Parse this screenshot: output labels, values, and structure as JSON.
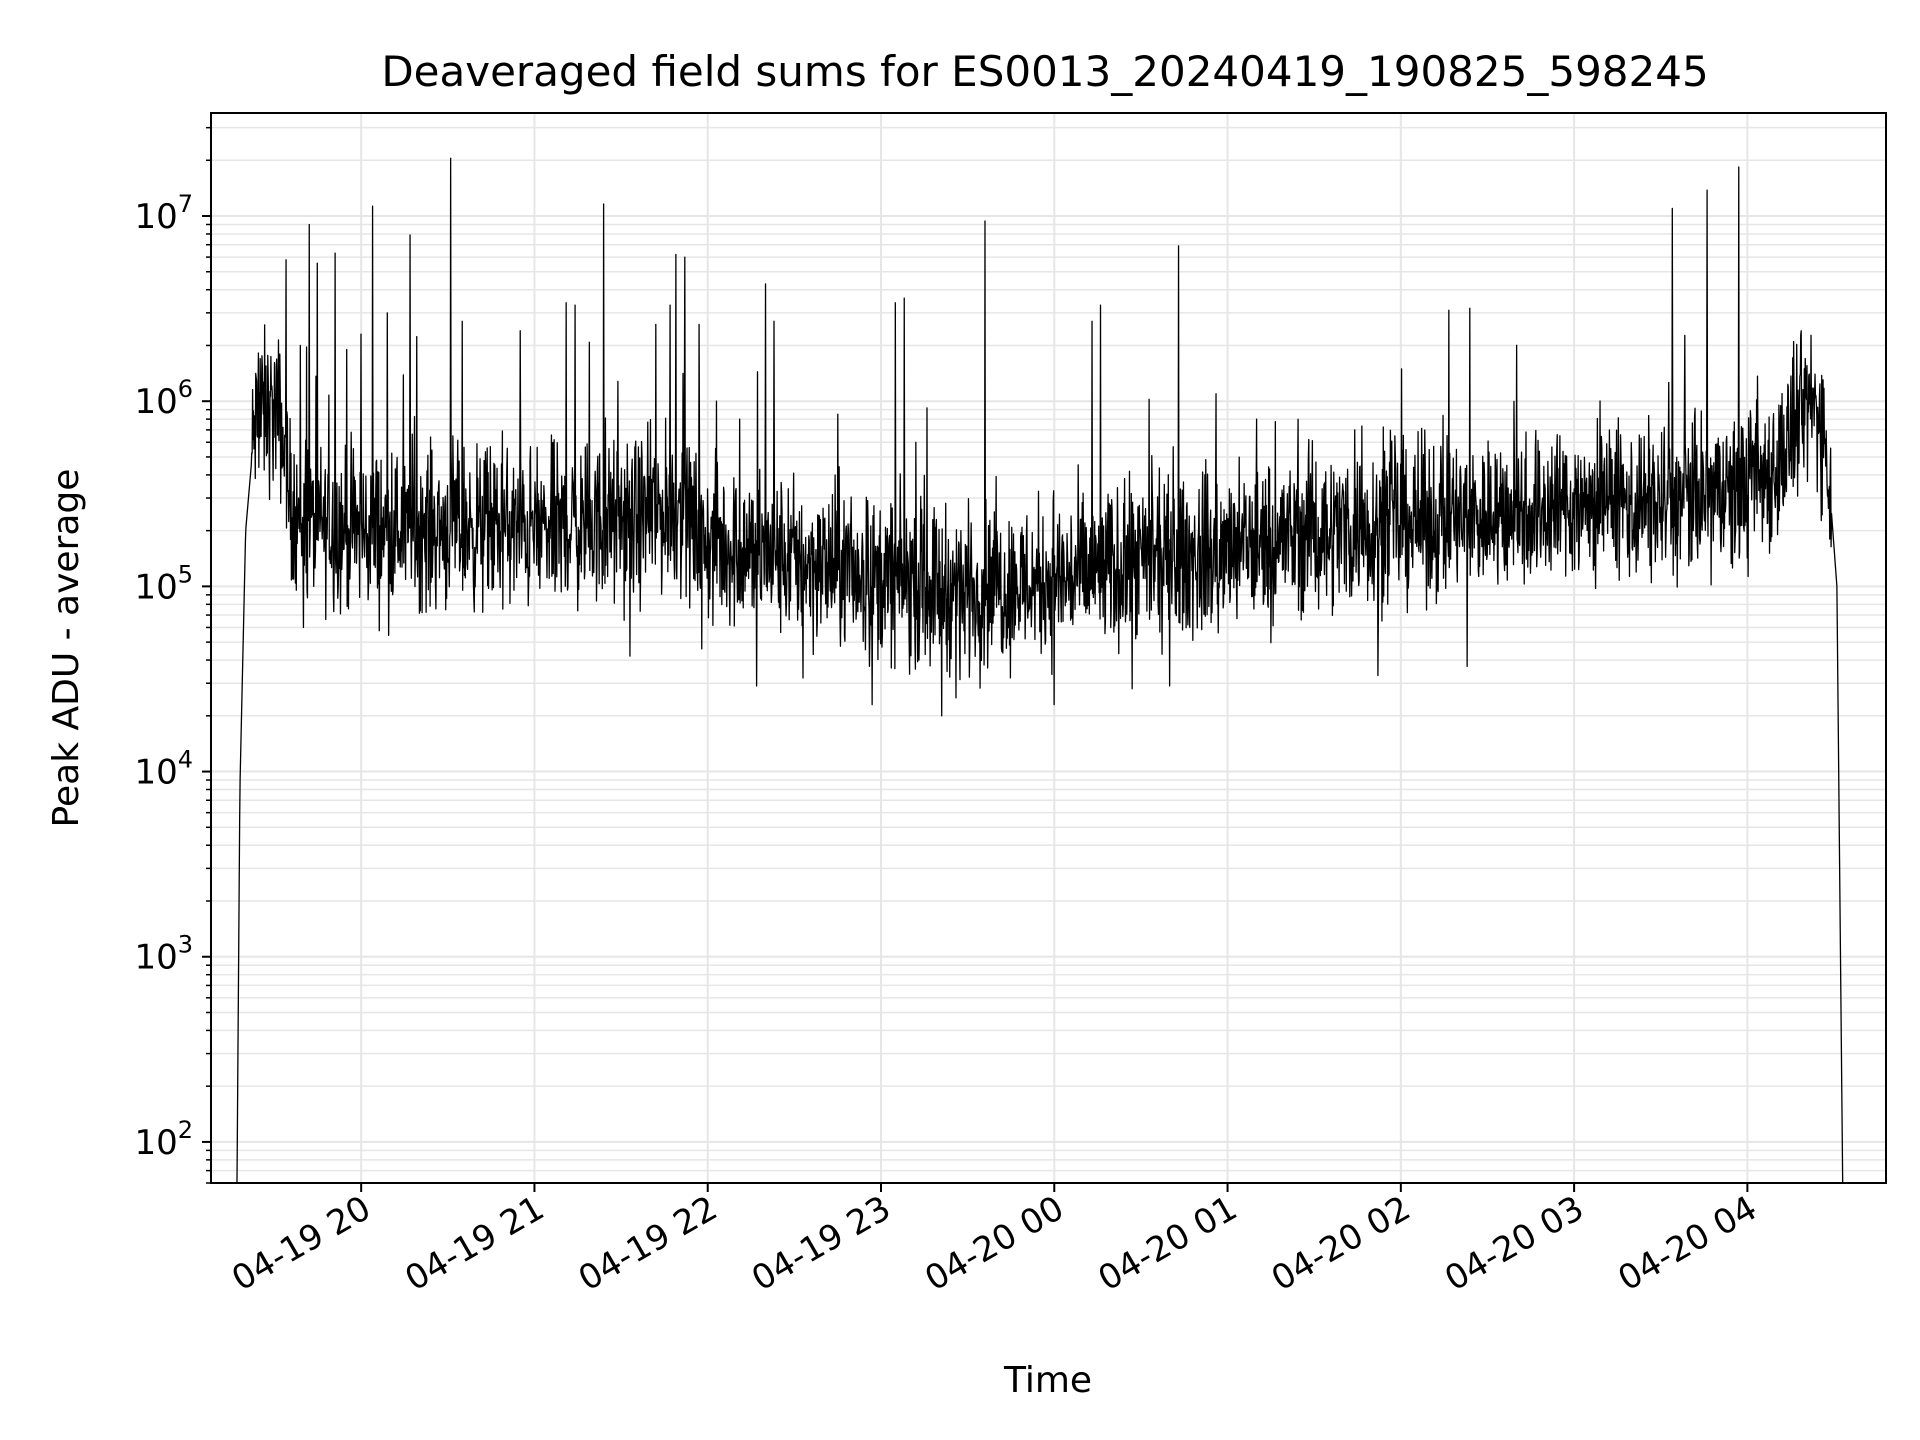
{
  "chart_data": {
    "type": "line",
    "title": "Deaveraged field sums for ES0013_20240419_190825_598245",
    "xlabel": "Time",
    "ylabel": "Peak ADU - average",
    "yscale": "log",
    "grid": true,
    "line_color": "#000000",
    "grid_color": "#e6e6e6",
    "x_ticks": [
      {
        "value": "2024-04-19 20:00",
        "label": "04-19 20"
      },
      {
        "value": "2024-04-19 21:00",
        "label": "04-19 21"
      },
      {
        "value": "2024-04-19 22:00",
        "label": "04-19 22"
      },
      {
        "value": "2024-04-19 23:00",
        "label": "04-19 23"
      },
      {
        "value": "2024-04-20 00:00",
        "label": "04-20 00"
      },
      {
        "value": "2024-04-20 01:00",
        "label": "04-20 01"
      },
      {
        "value": "2024-04-20 02:00",
        "label": "04-20 02"
      },
      {
        "value": "2024-04-20 03:00",
        "label": "04-20 03"
      },
      {
        "value": "2024-04-20 04:00",
        "label": "04-20 04"
      }
    ],
    "y_ticks": [
      {
        "value": 100,
        "base": "10",
        "exp": "2"
      },
      {
        "value": 1000,
        "base": "10",
        "exp": "3"
      },
      {
        "value": 10000,
        "base": "10",
        "exp": "4"
      },
      {
        "value": 100000,
        "base": "10",
        "exp": "5"
      },
      {
        "value": 1000000,
        "base": "10",
        "exp": "6"
      },
      {
        "value": 10000000,
        "base": "10",
        "exp": "7"
      }
    ],
    "xlim": [
      "2024-04-19 19:08",
      "2024-04-20 04:48"
    ],
    "ylim": [
      60,
      36000000
    ],
    "series": [
      {
        "baseline": [
          [
            "2024-04-19 19:17",
            60
          ],
          [
            "2024-04-19 19:18",
            8000
          ],
          [
            "2024-04-19 19:20",
            200000
          ],
          [
            "2024-04-19 19:23",
            700000
          ],
          [
            "2024-04-19 19:27",
            900000
          ],
          [
            "2024-04-19 19:32",
            800000
          ],
          [
            "2024-04-19 19:35",
            300000
          ],
          [
            "2024-04-19 19:40",
            220000
          ],
          [
            "2024-04-19 20:00",
            200000
          ],
          [
            "2024-04-19 20:30",
            210000
          ],
          [
            "2024-04-19 21:00",
            200000
          ],
          [
            "2024-04-19 21:30",
            220000
          ],
          [
            "2024-04-19 21:50",
            260000
          ],
          [
            "2024-04-19 22:00",
            170000
          ],
          [
            "2024-04-19 22:30",
            140000
          ],
          [
            "2024-04-19 23:00",
            110000
          ],
          [
            "2024-04-19 23:30",
            95000
          ],
          [
            "2024-04-20 00:00",
            110000
          ],
          [
            "2024-04-20 00:30",
            130000
          ],
          [
            "2024-04-20 01:00",
            150000
          ],
          [
            "2024-04-20 01:30",
            200000
          ],
          [
            "2024-04-20 02:00",
            220000
          ],
          [
            "2024-04-20 02:30",
            240000
          ],
          [
            "2024-04-20 03:00",
            280000
          ],
          [
            "2024-04-20 03:30",
            280000
          ],
          [
            "2024-04-20 03:55",
            310000
          ],
          [
            "2024-04-20 04:10",
            450000
          ],
          [
            "2024-04-20 04:22",
            1000000
          ],
          [
            "2024-04-20 04:27",
            700000
          ],
          [
            "2024-04-20 04:31",
            100000
          ],
          [
            "2024-04-20 04:33",
            60
          ]
        ],
        "spikes": [
          [
            "2024-04-19 19:25",
            1700000
          ],
          [
            "2024-04-19 19:34",
            5800000
          ],
          [
            "2024-04-19 19:39",
            2000000
          ],
          [
            "2024-04-19 19:42",
            9000000
          ],
          [
            "2024-04-19 19:51",
            6300000
          ],
          [
            "2024-04-19 19:55",
            1900000
          ],
          [
            "2024-04-19 20:00",
            2300000
          ],
          [
            "2024-04-19 20:04",
            11300000
          ],
          [
            "2024-04-19 20:09",
            3000000
          ],
          [
            "2024-04-19 20:17",
            7900000
          ],
          [
            "2024-04-19 20:31",
            20500000
          ],
          [
            "2024-04-19 20:35",
            2700000
          ],
          [
            "2024-04-19 20:55",
            2400000
          ],
          [
            "2024-04-19 21:11",
            3400000
          ],
          [
            "2024-04-19 21:14",
            3300000
          ],
          [
            "2024-04-19 21:24",
            11600000
          ],
          [
            "2024-04-19 21:42",
            2600000
          ],
          [
            "2024-04-19 21:47",
            3300000
          ],
          [
            "2024-04-19 21:49",
            6200000
          ],
          [
            "2024-04-19 21:52",
            6000000
          ],
          [
            "2024-04-19 21:57",
            2600000
          ],
          [
            "2024-04-19 22:03",
            1000000
          ],
          [
            "2024-04-19 22:11",
            800000
          ],
          [
            "2024-04-19 22:20",
            4300000
          ],
          [
            "2024-04-19 22:23",
            2700000
          ],
          [
            "2024-04-19 22:45",
            850000
          ],
          [
            "2024-04-19 23:05",
            3400000
          ],
          [
            "2024-04-19 23:08",
            3600000
          ],
          [
            "2024-04-19 23:12",
            600000
          ],
          [
            "2024-04-19 23:36",
            9400000
          ],
          [
            "2024-04-20 00:13",
            2700000
          ],
          [
            "2024-04-20 00:16",
            3300000
          ],
          [
            "2024-04-20 00:43",
            6900000
          ],
          [
            "2024-04-20 01:10",
            800000
          ],
          [
            "2024-04-20 01:44",
            700000
          ],
          [
            "2024-04-20 01:58",
            650000
          ],
          [
            "2024-04-20 02:23",
            800000
          ],
          [
            "2024-04-20 03:34",
            11000000
          ],
          [
            "2024-04-20 03:46",
            13800000
          ],
          [
            "2024-04-20 03:57",
            18400000
          ],
          [
            "2024-04-20 04:16",
            2100000
          ],
          [
            "2024-04-20 04:20",
            1700000
          ]
        ],
        "dips": [
          [
            "2024-04-19 19:40",
            60000
          ],
          [
            "2024-04-19 21:33",
            42000
          ],
          [
            "2024-04-19 21:58",
            46000
          ],
          [
            "2024-04-19 22:17",
            29000
          ],
          [
            "2024-04-19 22:33",
            32000
          ],
          [
            "2024-04-19 22:57",
            23000
          ],
          [
            "2024-04-19 23:21",
            20000
          ],
          [
            "2024-04-19 23:26",
            25000
          ],
          [
            "2024-04-20 00:00",
            23000
          ],
          [
            "2024-04-20 00:27",
            28000
          ],
          [
            "2024-04-20 00:40",
            29000
          ],
          [
            "2024-04-20 01:52",
            33000
          ],
          [
            "2024-04-20 02:23",
            37000
          ]
        ]
      }
    ]
  }
}
